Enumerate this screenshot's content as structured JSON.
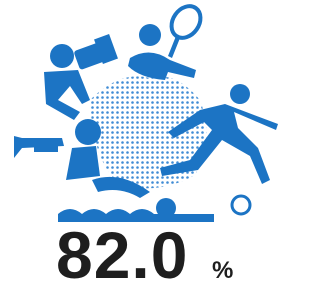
{
  "stat": {
    "value": "82.0",
    "unit": "%"
  }
}
